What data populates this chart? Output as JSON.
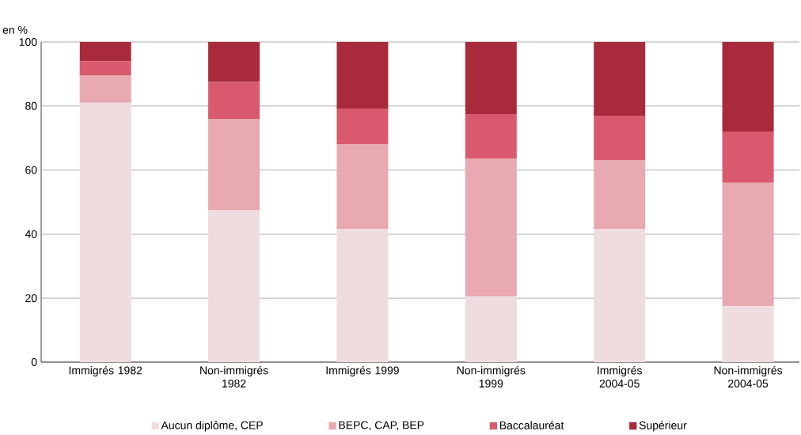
{
  "chart_data": {
    "type": "bar",
    "stacked": true,
    "ylabel": "en %",
    "categories": [
      "Immigrés 1982",
      "Non-immigrés 1982",
      "Immigrés 1999",
      "Non-immigrés 1999",
      "Immigrés 2004-05",
      "Non-immigrés 2004-05"
    ],
    "series": [
      {
        "name": "Aucun diplôme, CEP",
        "color": "#efdcdf",
        "values": [
          81,
          47.5,
          41.5,
          20.5,
          41.5,
          17.5
        ]
      },
      {
        "name": "BEPC, CAP, BEP",
        "color": "#e8a9b1",
        "values": [
          8.5,
          28.5,
          26.5,
          43,
          21.5,
          38.5
        ]
      },
      {
        "name": "Baccalauréat",
        "color": "#d95a6e",
        "values": [
          4.5,
          11.5,
          11,
          14,
          14,
          16
        ]
      },
      {
        "name": "Supérieur",
        "color": "#a92b3b",
        "values": [
          6,
          12.5,
          21,
          22.5,
          23,
          28
        ]
      }
    ],
    "ylim": [
      0,
      100
    ],
    "yticks": [
      0,
      20,
      40,
      60,
      80,
      100
    ],
    "grid": "y",
    "legend": "bottom"
  }
}
